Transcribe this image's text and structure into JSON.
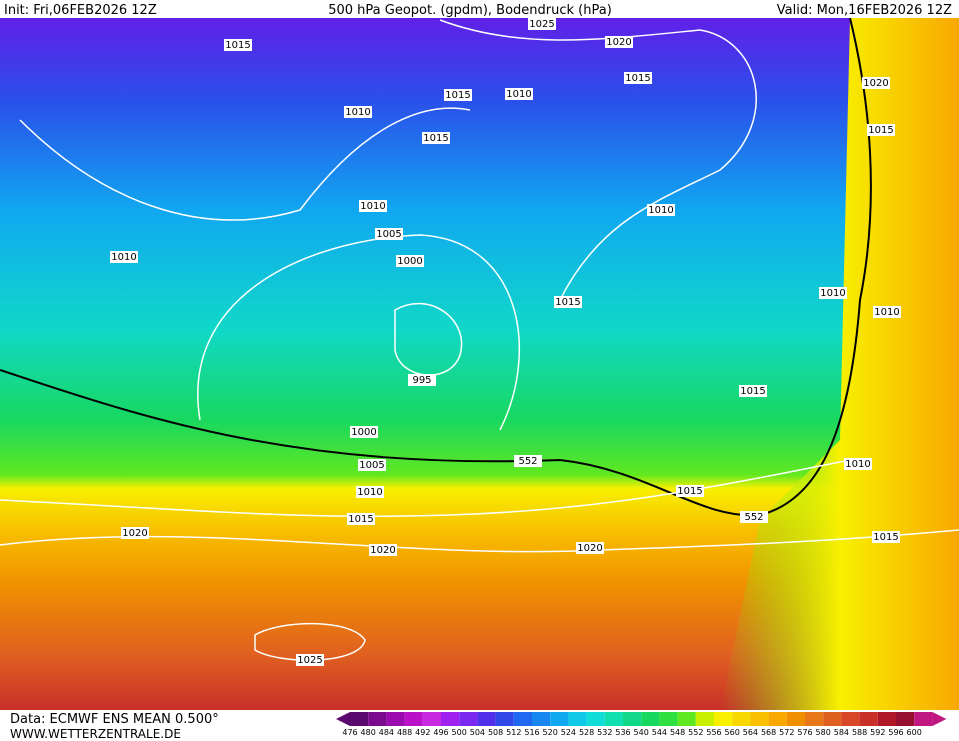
{
  "header": {
    "init": "Init: Fri,06FEB2026 12Z",
    "title": "500 hPa Geopot. (gpdm), Bodendruck (hPa)",
    "valid": "Valid: Mon,16FEB2026 12Z"
  },
  "footer": {
    "data": "Data: ECMWF ENS MEAN 0.500°",
    "site": "WWW.WETTERZENTRALE.DE"
  },
  "map": {
    "labels": [
      1015,
      1025,
      1020,
      1015,
      1020,
      1015,
      1015,
      1010,
      1010,
      1015,
      1010,
      1010,
      1005,
      1000,
      1010,
      1015,
      1010,
      1010,
      995,
      1015,
      1000,
      1005,
      552,
      1010,
      1010,
      1015,
      1015,
      552,
      1020,
      1015,
      1020,
      1020,
      1025
    ]
  },
  "legend": {
    "labels": [
      476,
      480,
      484,
      488,
      492,
      496,
      500,
      504,
      508,
      512,
      516,
      520,
      524,
      528,
      532,
      536,
      540,
      544,
      548,
      552,
      556,
      560,
      564,
      568,
      572,
      576,
      580,
      584,
      588,
      592,
      596,
      600
    ],
    "colors": [
      "#5a0a6e",
      "#7a0a8e",
      "#9a0aae",
      "#ba10c8",
      "#c828e0",
      "#a020f0",
      "#7a28f0",
      "#5030e8",
      "#3048e8",
      "#2068f0",
      "#1888f0",
      "#10a8f0",
      "#10c8e8",
      "#10dcd8",
      "#10e0b0",
      "#10d888",
      "#18d860",
      "#30e040",
      "#60e820",
      "#c8f000",
      "#f8f000",
      "#f8d800",
      "#f8c000",
      "#f8a800",
      "#f09000",
      "#e87818",
      "#e06020",
      "#d84828",
      "#c83028",
      "#b01828",
      "#981030",
      "#c01880"
    ]
  }
}
